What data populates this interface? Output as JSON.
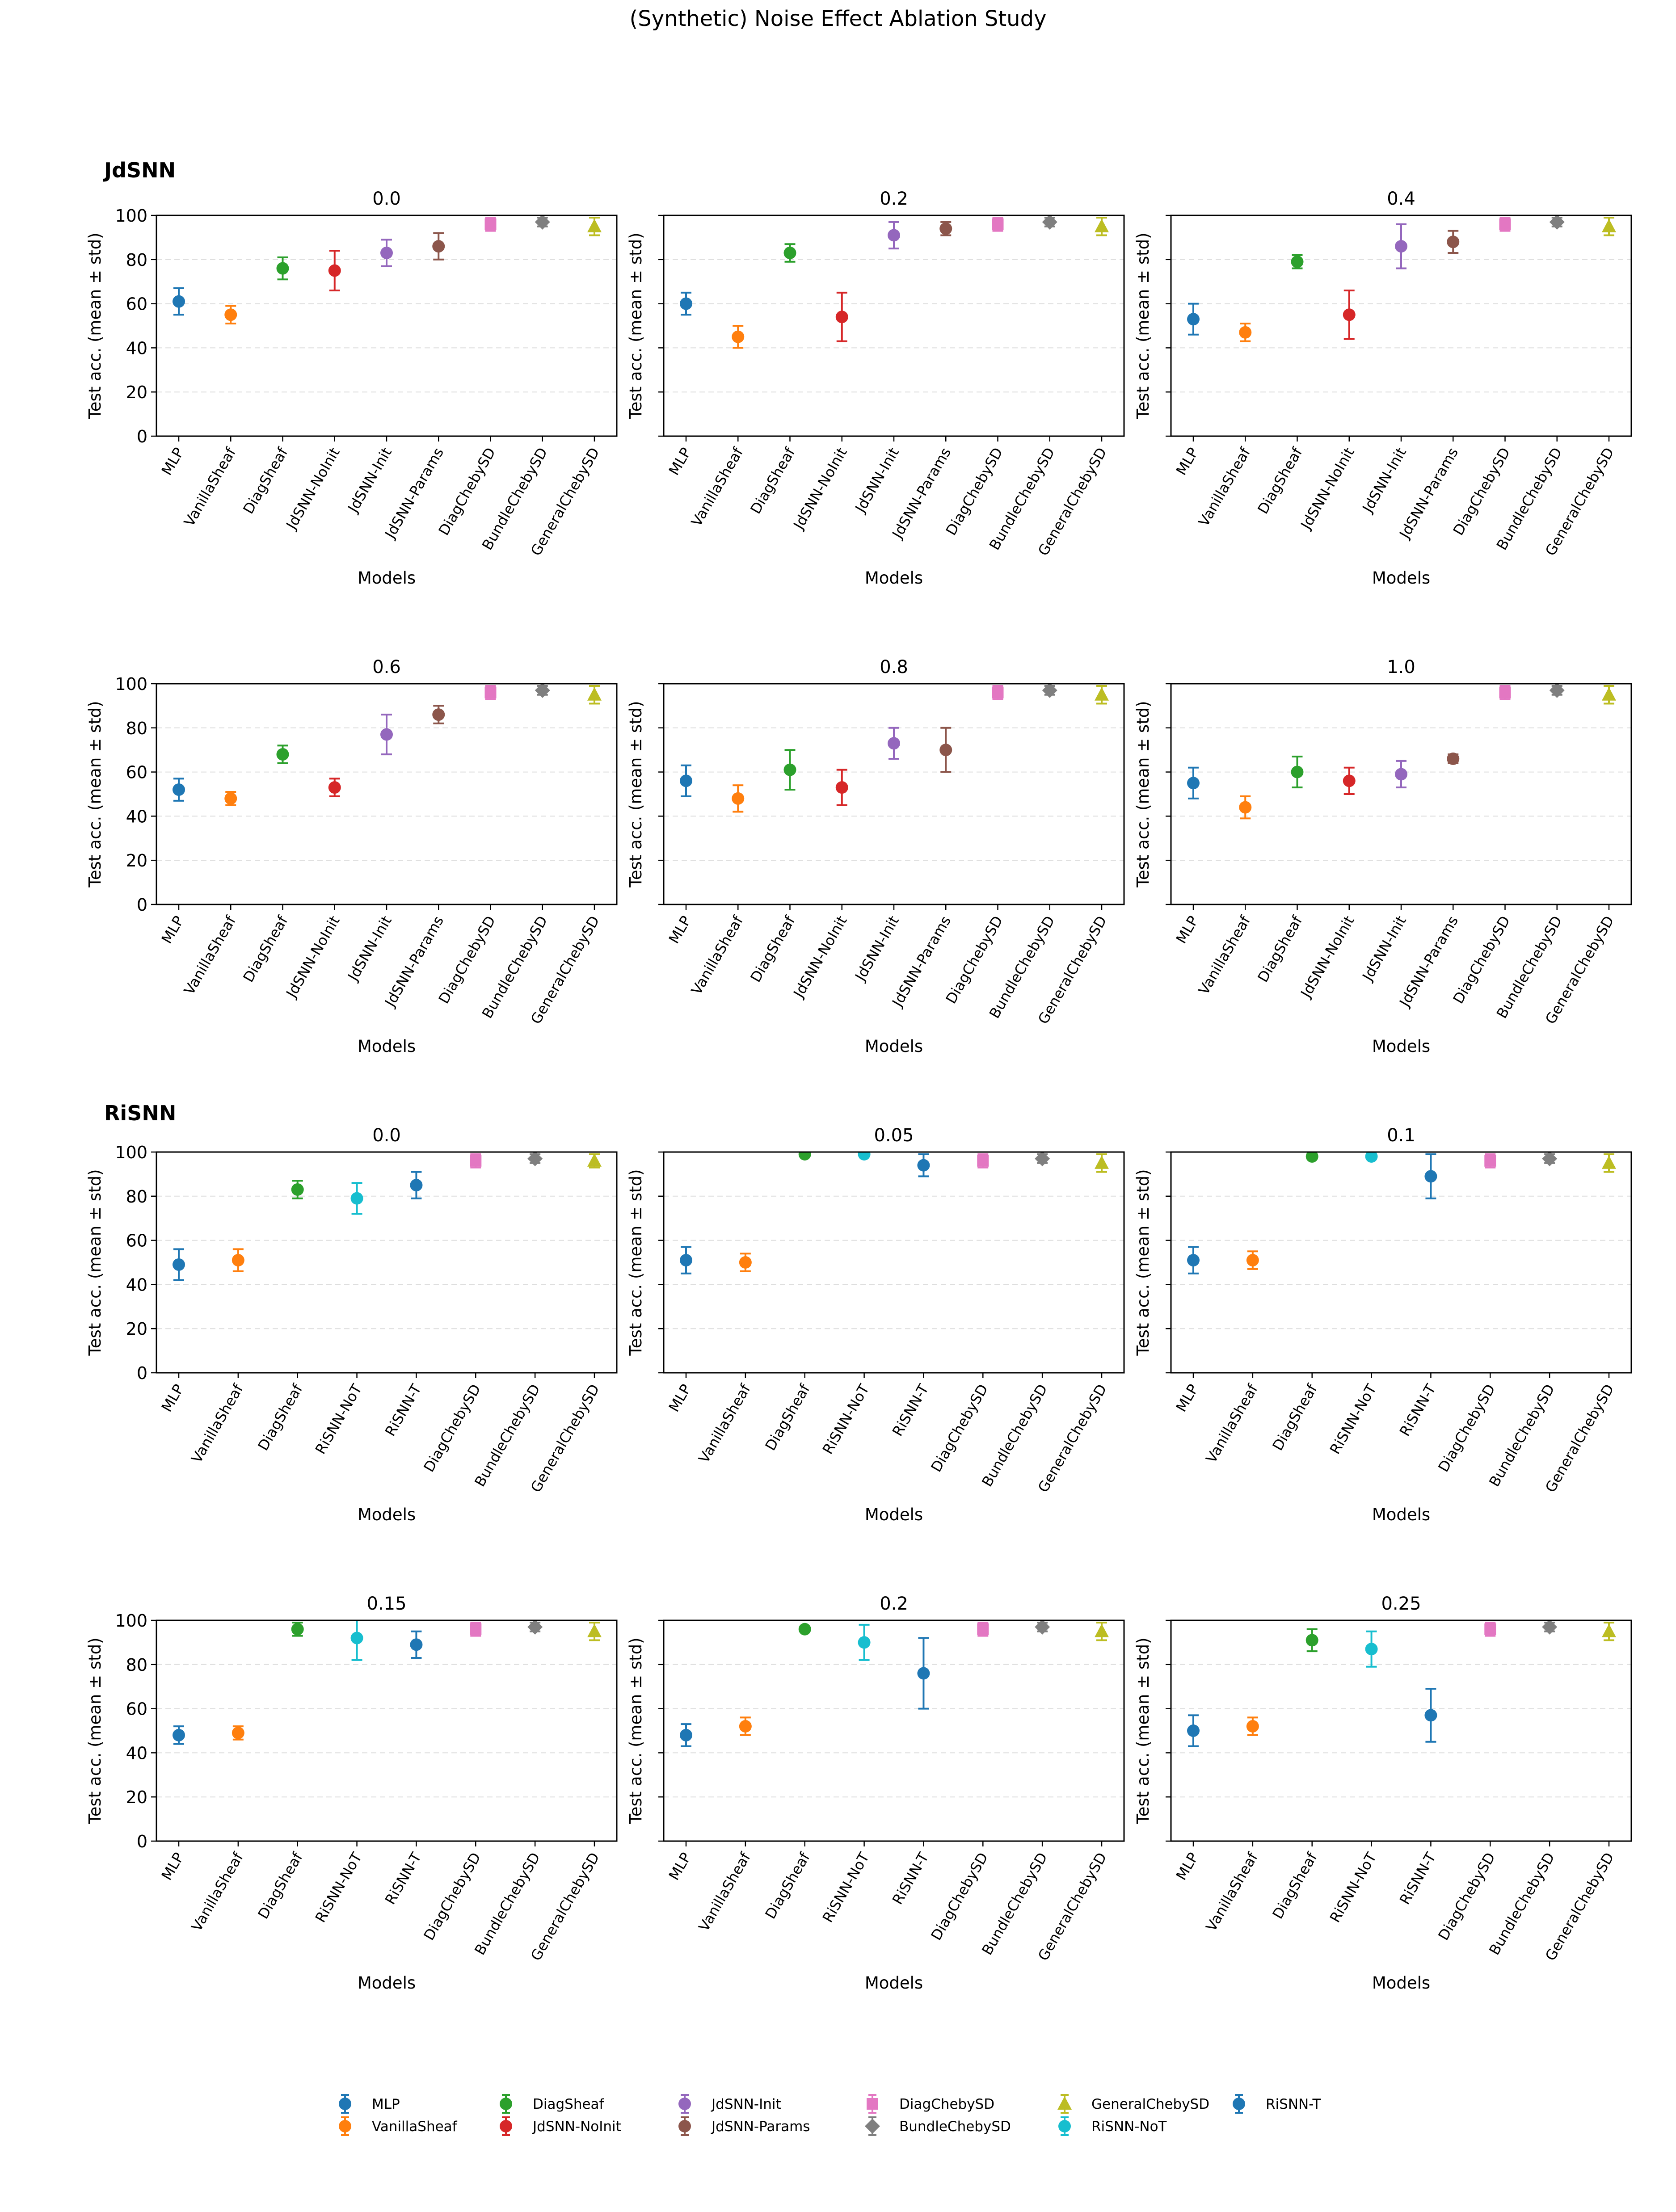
{
  "title": "(Synthetic) Noise Effect Ablation Study",
  "section_labels": [
    "JdSNN",
    "RiSNN"
  ],
  "axis": {
    "ylabel": "Test acc. (mean ± std)",
    "xlabel": "Models",
    "yticks": [
      0,
      20,
      40,
      60,
      80,
      100
    ],
    "ylim": [
      0,
      100
    ]
  },
  "legend": [
    {
      "name": "MLP",
      "color": "#1f77b4",
      "marker": "circle"
    },
    {
      "name": "VanillaSheaf",
      "color": "#ff7f0e",
      "marker": "circle"
    },
    {
      "name": "DiagSheaf",
      "color": "#2ca02c",
      "marker": "circle"
    },
    {
      "name": "JdSNN-NoInit",
      "color": "#d62728",
      "marker": "circle"
    },
    {
      "name": "JdSNN-Init",
      "color": "#9467bd",
      "marker": "circle"
    },
    {
      "name": "JdSNN-Params",
      "color": "#8c564b",
      "marker": "circle"
    },
    {
      "name": "DiagChebySD",
      "color": "#e377c2",
      "marker": "square"
    },
    {
      "name": "BundleChebySD",
      "color": "#7f7f7f",
      "marker": "diamond"
    },
    {
      "name": "GeneralChebySD",
      "color": "#bcbd22",
      "marker": "triangle"
    },
    {
      "name": "RiSNN-NoT",
      "color": "#17becf",
      "marker": "circle"
    },
    {
      "name": "RiSNN-T",
      "color": "#1f77b4",
      "marker": "circle"
    }
  ],
  "chart_data": [
    {
      "type": "scatter",
      "group": "JdSNN",
      "title": "0.0",
      "xlabel": "Models",
      "ylabel": "Test acc. (mean ± std)",
      "ylim": [
        0,
        100
      ],
      "categories": [
        "MLP",
        "VanillaSheaf",
        "DiagSheaf",
        "JdSNN-NoInit",
        "JdSNN-Init",
        "JdSNN-Params",
        "DiagChebySD",
        "BundleChebySD",
        "GeneralChebySD"
      ],
      "values": [
        61,
        55,
        76,
        75,
        83,
        86,
        96,
        97,
        95
      ],
      "std": [
        6,
        4,
        5,
        9,
        6,
        6,
        3,
        2,
        4
      ]
    },
    {
      "type": "scatter",
      "group": "JdSNN",
      "title": "0.2",
      "xlabel": "Models",
      "ylabel": "Test acc. (mean ± std)",
      "ylim": [
        0,
        100
      ],
      "categories": [
        "MLP",
        "VanillaSheaf",
        "DiagSheaf",
        "JdSNN-NoInit",
        "JdSNN-Init",
        "JdSNN-Params",
        "DiagChebySD",
        "BundleChebySD",
        "GeneralChebySD"
      ],
      "values": [
        60,
        45,
        83,
        54,
        91,
        94,
        96,
        97,
        95
      ],
      "std": [
        5,
        5,
        4,
        11,
        6,
        3,
        3,
        2,
        4
      ]
    },
    {
      "type": "scatter",
      "group": "JdSNN",
      "title": "0.4",
      "xlabel": "Models",
      "ylabel": "Test acc. (mean ± std)",
      "ylim": [
        0,
        100
      ],
      "categories": [
        "MLP",
        "VanillaSheaf",
        "DiagSheaf",
        "JdSNN-NoInit",
        "JdSNN-Init",
        "JdSNN-Params",
        "DiagChebySD",
        "BundleChebySD",
        "GeneralChebySD"
      ],
      "values": [
        53,
        47,
        79,
        55,
        86,
        88,
        96,
        97,
        95
      ],
      "std": [
        7,
        4,
        3,
        11,
        10,
        5,
        3,
        2,
        4
      ]
    },
    {
      "type": "scatter",
      "group": "JdSNN",
      "title": "0.6",
      "xlabel": "Models",
      "ylabel": "Test acc. (mean ± std)",
      "ylim": [
        0,
        100
      ],
      "categories": [
        "MLP",
        "VanillaSheaf",
        "DiagSheaf",
        "JdSNN-NoInit",
        "JdSNN-Init",
        "JdSNN-Params",
        "DiagChebySD",
        "BundleChebySD",
        "GeneralChebySD"
      ],
      "values": [
        52,
        48,
        68,
        53,
        77,
        86,
        96,
        97,
        95
      ],
      "std": [
        5,
        3,
        4,
        4,
        9,
        4,
        3,
        2,
        4
      ]
    },
    {
      "type": "scatter",
      "group": "JdSNN",
      "title": "0.8",
      "xlabel": "Models",
      "ylabel": "Test acc. (mean ± std)",
      "ylim": [
        0,
        100
      ],
      "categories": [
        "MLP",
        "VanillaSheaf",
        "DiagSheaf",
        "JdSNN-NoInit",
        "JdSNN-Init",
        "JdSNN-Params",
        "DiagChebySD",
        "BundleChebySD",
        "GeneralChebySD"
      ],
      "values": [
        56,
        48,
        61,
        53,
        73,
        70,
        96,
        97,
        95
      ],
      "std": [
        7,
        6,
        9,
        8,
        7,
        10,
        3,
        2,
        4
      ]
    },
    {
      "type": "scatter",
      "group": "JdSNN",
      "title": "1.0",
      "xlabel": "Models",
      "ylabel": "Test acc. (mean ± std)",
      "ylim": [
        0,
        100
      ],
      "categories": [
        "MLP",
        "VanillaSheaf",
        "DiagSheaf",
        "JdSNN-NoInit",
        "JdSNN-Init",
        "JdSNN-Params",
        "DiagChebySD",
        "BundleChebySD",
        "GeneralChebySD"
      ],
      "values": [
        55,
        44,
        60,
        56,
        59,
        66,
        96,
        97,
        95
      ],
      "std": [
        7,
        5,
        7,
        6,
        6,
        2,
        3,
        2,
        4
      ]
    },
    {
      "type": "scatter",
      "group": "RiSNN",
      "title": "0.0",
      "xlabel": "Models",
      "ylabel": "Test acc. (mean ± std)",
      "ylim": [
        0,
        100
      ],
      "categories": [
        "MLP",
        "VanillaSheaf",
        "DiagSheaf",
        "RiSNN-NoT",
        "RiSNN-T",
        "DiagChebySD",
        "BundleChebySD",
        "GeneralChebySD"
      ],
      "values": [
        49,
        51,
        83,
        79,
        85,
        96,
        97,
        96
      ],
      "std": [
        7,
        5,
        4,
        7,
        6,
        3,
        2,
        3
      ]
    },
    {
      "type": "scatter",
      "group": "RiSNN",
      "title": "0.05",
      "xlabel": "Models",
      "ylabel": "Test acc. (mean ± std)",
      "ylim": [
        0,
        100
      ],
      "categories": [
        "MLP",
        "VanillaSheaf",
        "DiagSheaf",
        "RiSNN-NoT",
        "RiSNN-T",
        "DiagChebySD",
        "BundleChebySD",
        "GeneralChebySD"
      ],
      "values": [
        51,
        50,
        99,
        99,
        94,
        96,
        97,
        95
      ],
      "std": [
        6,
        4,
        1,
        1,
        5,
        3,
        2,
        4
      ]
    },
    {
      "type": "scatter",
      "group": "RiSNN",
      "title": "0.1",
      "xlabel": "Models",
      "ylabel": "Test acc. (mean ± std)",
      "ylim": [
        0,
        100
      ],
      "categories": [
        "MLP",
        "VanillaSheaf",
        "DiagSheaf",
        "RiSNN-NoT",
        "RiSNN-T",
        "DiagChebySD",
        "BundleChebySD",
        "GeneralChebySD"
      ],
      "values": [
        51,
        51,
        98,
        98,
        89,
        96,
        97,
        95
      ],
      "std": [
        6,
        4,
        1,
        1,
        10,
        3,
        2,
        4
      ]
    },
    {
      "type": "scatter",
      "group": "RiSNN",
      "title": "0.15",
      "xlabel": "Models",
      "ylabel": "Test acc. (mean ± std)",
      "ylim": [
        0,
        100
      ],
      "categories": [
        "MLP",
        "VanillaSheaf",
        "DiagSheaf",
        "RiSNN-NoT",
        "RiSNN-T",
        "DiagChebySD",
        "BundleChebySD",
        "GeneralChebySD"
      ],
      "values": [
        48,
        49,
        96,
        92,
        89,
        96,
        97,
        95
      ],
      "std": [
        4,
        3,
        3,
        10,
        6,
        3,
        2,
        4
      ]
    },
    {
      "type": "scatter",
      "group": "RiSNN",
      "title": "0.2",
      "xlabel": "Models",
      "ylabel": "Test acc. (mean ± std)",
      "ylim": [
        0,
        100
      ],
      "categories": [
        "MLP",
        "VanillaSheaf",
        "DiagSheaf",
        "RiSNN-NoT",
        "RiSNN-T",
        "DiagChebySD",
        "BundleChebySD",
        "GeneralChebySD"
      ],
      "values": [
        48,
        52,
        96,
        90,
        76,
        96,
        97,
        95
      ],
      "std": [
        5,
        4,
        1,
        8,
        16,
        3,
        2,
        4
      ]
    },
    {
      "type": "scatter",
      "group": "RiSNN",
      "title": "0.25",
      "xlabel": "Models",
      "ylabel": "Test acc. (mean ± std)",
      "ylim": [
        0,
        100
      ],
      "categories": [
        "MLP",
        "VanillaSheaf",
        "DiagSheaf",
        "RiSNN-NoT",
        "RiSNN-T",
        "DiagChebySD",
        "BundleChebySD",
        "GeneralChebySD"
      ],
      "values": [
        50,
        52,
        91,
        87,
        57,
        96,
        97,
        95
      ],
      "std": [
        7,
        4,
        5,
        8,
        12,
        3,
        2,
        4
      ]
    }
  ]
}
